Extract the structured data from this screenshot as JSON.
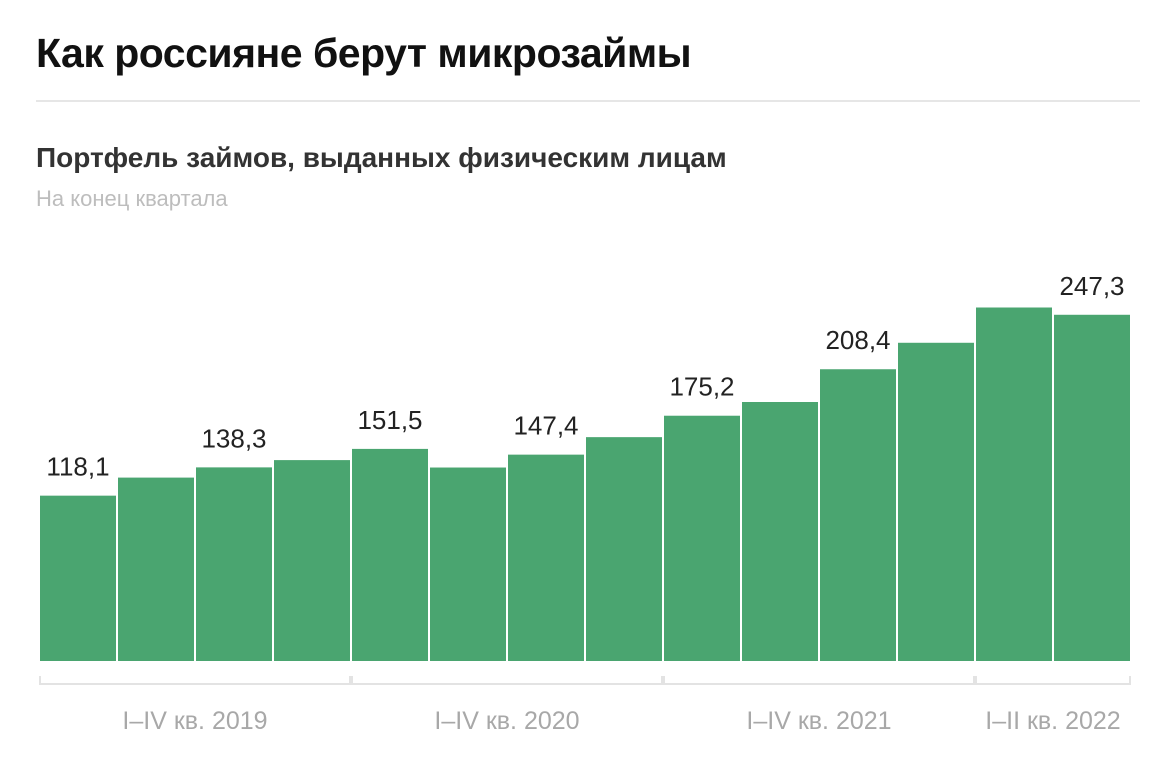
{
  "header": {
    "title": "Как россияне берут микрозаймы",
    "subtitle": "Портфель займов, выданных физическим лицам",
    "note": "На конец квартала"
  },
  "chart_data": {
    "type": "bar",
    "title": "Портфель займов, выданных физическим лицам",
    "subtitle": "На конец квартала",
    "bar_color": "#4aa570",
    "categories": [
      "I кв. 2019",
      "II кв. 2019",
      "III кв. 2019",
      "IV кв. 2019",
      "I кв. 2020",
      "II кв. 2020",
      "III кв. 2020",
      "IV кв. 2020",
      "I кв. 2021",
      "II кв. 2021",
      "III кв. 2021",
      "IV кв. 2021",
      "I кв. 2022",
      "II кв. 2022"
    ],
    "values": [
      118.1,
      131.0,
      138.3,
      143.5,
      151.5,
      138.2,
      147.4,
      159.9,
      175.2,
      185.0,
      208.4,
      227.3,
      252.5,
      247.3
    ],
    "data_labels": [
      {
        "index": 0,
        "text": "118,1"
      },
      {
        "index": 2,
        "text": "138,3"
      },
      {
        "index": 4,
        "text": "151,5"
      },
      {
        "index": 6,
        "text": "147,4"
      },
      {
        "index": 8,
        "text": "175,2"
      },
      {
        "index": 10,
        "text": "208,4"
      },
      {
        "index": 13,
        "text": "247,3"
      }
    ],
    "groups": [
      {
        "label": "I–IV кв. 2019",
        "start": 0,
        "end": 3
      },
      {
        "label": "I–IV кв. 2020",
        "start": 4,
        "end": 7
      },
      {
        "label": "I–IV кв. 2021",
        "start": 8,
        "end": 11
      },
      {
        "label": "I–II кв. 2022",
        "start": 12,
        "end": 13
      }
    ],
    "ylim": [
      0,
      260
    ],
    "grid": false,
    "legend": "none"
  }
}
